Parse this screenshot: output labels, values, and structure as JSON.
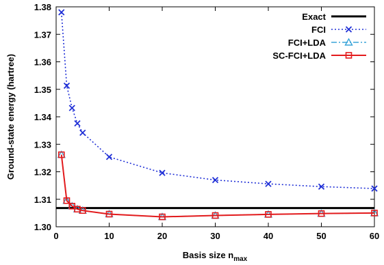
{
  "chart_data": {
    "type": "line",
    "xlabel": "Basis size n",
    "xlabel_sub": "max",
    "ylabel": "Ground-state energy (hartree)",
    "xlim": [
      0,
      60
    ],
    "ylim": [
      1.3,
      1.38
    ],
    "xticks": [
      0,
      10,
      20,
      30,
      40,
      50,
      60
    ],
    "yticks": [
      1.3,
      1.31,
      1.32,
      1.33,
      1.34,
      1.35,
      1.36,
      1.37,
      1.38
    ],
    "grid": false,
    "legend_position": "top-right",
    "series": [
      {
        "name": "Exact",
        "style": "solid-thick",
        "color": "#000000",
        "marker": "none",
        "x": [
          0,
          60
        ],
        "y": [
          1.3068,
          1.3068
        ]
      },
      {
        "name": "FCI",
        "style": "dotted",
        "color": "#1f2fd6",
        "marker": "x",
        "x": [
          1,
          2,
          3,
          4,
          5,
          10,
          20,
          30,
          40,
          50,
          60
        ],
        "y": [
          1.378,
          1.3513,
          1.3432,
          1.3376,
          1.3342,
          1.3254,
          1.3196,
          1.317,
          1.3156,
          1.3146,
          1.3139
        ]
      },
      {
        "name": "FCI+LDA",
        "style": "dash-dot",
        "color": "#38a3d8",
        "marker": "triangle",
        "x": [
          1,
          2,
          3,
          4,
          5,
          10,
          20,
          30,
          40,
          50,
          60
        ],
        "y": [
          1.3262,
          1.3095,
          1.3075,
          1.3064,
          1.3059,
          1.3046,
          1.3036,
          1.3041,
          1.3045,
          1.3048,
          1.305
        ]
      },
      {
        "name": "SC-FCI+LDA",
        "style": "solid",
        "color": "#e31a1c",
        "marker": "square",
        "x": [
          1,
          2,
          3,
          4,
          5,
          10,
          20,
          30,
          40,
          50,
          60
        ],
        "y": [
          1.3262,
          1.3095,
          1.3075,
          1.3064,
          1.3059,
          1.3046,
          1.3036,
          1.3041,
          1.3045,
          1.3048,
          1.305
        ]
      }
    ]
  }
}
